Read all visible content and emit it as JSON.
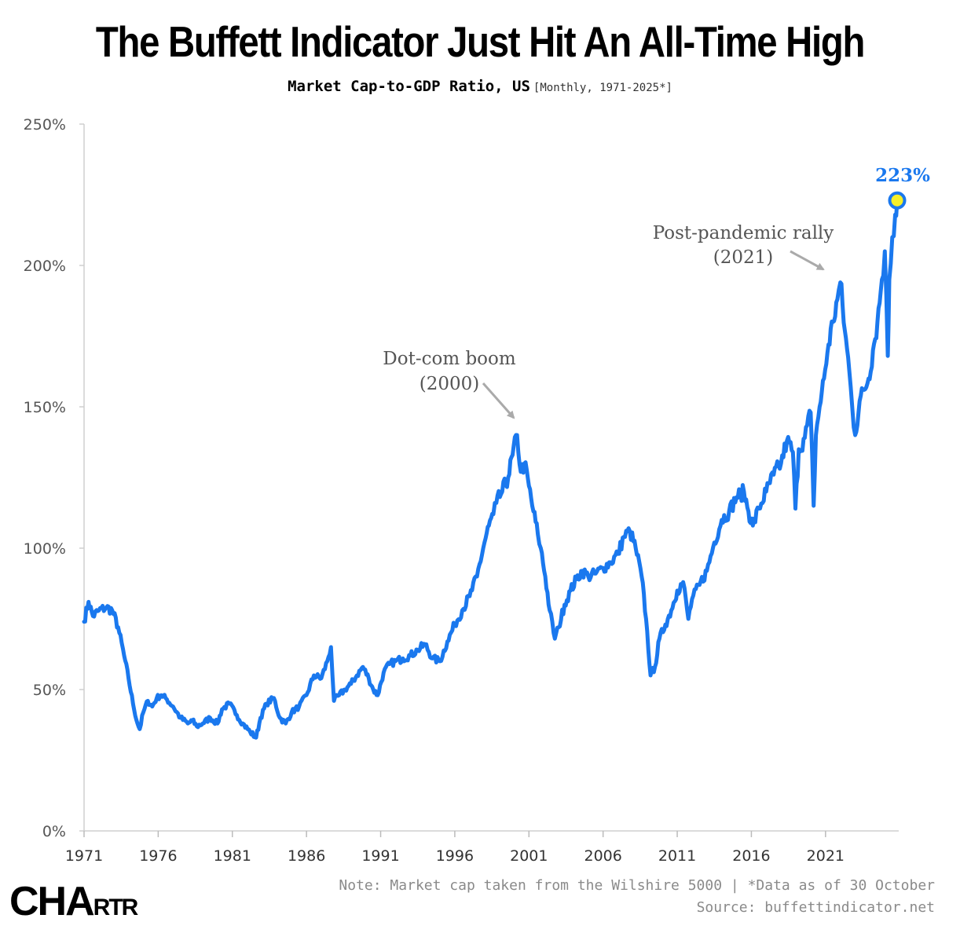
{
  "title": "The Buffett Indicator Just Hit An All-Time High",
  "subtitle": "Market Cap-to-GDP Ratio, US",
  "subtitle_range": "[Monthly, 1971-2025*]",
  "note_line1": "Note: Market cap taken from the Wilshire 5000 | *Data as of 30 October",
  "note_line2": "Source: buffettindicator.net",
  "logo": {
    "big": "CHA",
    "small": "RTR"
  },
  "colors": {
    "line": "#1a78ee",
    "marker_fill": "#f5ef2a",
    "annotation": "#555555",
    "arrow": "#aaaaaa"
  },
  "chart_data": {
    "type": "line",
    "ylim": [
      0,
      250
    ],
    "xlim": [
      1971,
      2025.83
    ],
    "y_ticks": [
      "0%",
      "50%",
      "100%",
      "150%",
      "200%",
      "250%"
    ],
    "x_ticks": [
      "1971",
      "1976",
      "1981",
      "1986",
      "1991",
      "1996",
      "2001",
      "2006",
      "2011",
      "2016",
      "2021"
    ],
    "grid": false,
    "series": [
      {
        "x": [
          1971.0,
          1971.3,
          1971.6,
          1972.0,
          1972.5,
          1972.9,
          1973.3,
          1973.7,
          1974.0,
          1974.3,
          1974.6,
          1974.75,
          1975.0,
          1975.3,
          1975.6,
          1975.9,
          1976.2,
          1976.5,
          1977.0,
          1977.5,
          1978.0,
          1978.3,
          1978.6,
          1979.0,
          1979.5,
          1980.0,
          1980.3,
          1980.8,
          1981.3,
          1981.7,
          1982.2,
          1982.6,
          1982.9,
          1983.3,
          1983.8,
          1984.2,
          1984.6,
          1985.0,
          1985.5,
          1986.0,
          1986.5,
          1987.0,
          1987.4,
          1987.65,
          1987.85,
          1988.2,
          1988.6,
          1989.0,
          1989.4,
          1989.8,
          1990.2,
          1990.5,
          1990.8,
          1991.2,
          1991.6,
          1992.0,
          1992.5,
          1993.0,
          1993.5,
          1994.0,
          1994.5,
          1995.0,
          1995.5,
          1996.0,
          1996.5,
          1997.0,
          1997.5,
          1998.0,
          1998.3,
          1998.6,
          1998.8,
          1999.2,
          1999.6,
          1999.9,
          2000.2,
          2000.45,
          2000.7,
          2001.0,
          2001.3,
          2001.6,
          2001.8,
          2002.1,
          2002.4,
          2002.75,
          2003.0,
          2003.4,
          2003.8,
          2004.2,
          2004.6,
          2005.0,
          2005.5,
          2006.0,
          2006.5,
          2007.0,
          2007.4,
          2007.8,
          2008.2,
          2008.6,
          2008.9,
          2009.2,
          2009.5,
          2009.8,
          2010.2,
          2010.6,
          2011.0,
          2011.4,
          2011.75,
          2012.0,
          2012.5,
          2013.0,
          2013.5,
          2014.0,
          2014.5,
          2015.0,
          2015.5,
          2015.8,
          2016.1,
          2016.5,
          2017.0,
          2017.5,
          2018.0,
          2018.4,
          2018.8,
          2018.97,
          2019.2,
          2019.6,
          2020.0,
          2020.2,
          2020.35,
          2020.6,
          2020.9,
          2021.2,
          2021.5,
          2021.8,
          2022.0,
          2022.3,
          2022.6,
          2022.8,
          2023.0,
          2023.3,
          2023.6,
          2023.9,
          2024.2,
          2024.5,
          2024.8,
          2025.0,
          2025.2,
          2025.3,
          2025.5,
          2025.7,
          2025.83
        ],
        "y": [
          74,
          81,
          76,
          78,
          79,
          78,
          72,
          62,
          54,
          45,
          38,
          36,
          42,
          46,
          44,
          47,
          48,
          47,
          44,
          40,
          38,
          39,
          37,
          38,
          40,
          38,
          43,
          45,
          41,
          38,
          35,
          33,
          40,
          45,
          47,
          40,
          38,
          42,
          44,
          48,
          55,
          54,
          60,
          65,
          46,
          48,
          50,
          52,
          55,
          58,
          54,
          50,
          48,
          56,
          59,
          60,
          61,
          62,
          64,
          66,
          61,
          60,
          67,
          73,
          78,
          83,
          90,
          102,
          108,
          112,
          116,
          120,
          125,
          133,
          140,
          127,
          130,
          122,
          113,
          105,
          100,
          90,
          78,
          68,
          72,
          80,
          85,
          89,
          92,
          90,
          91,
          93,
          95,
          98,
          104,
          106,
          100,
          90,
          75,
          55,
          58,
          68,
          73,
          78,
          85,
          88,
          75,
          82,
          87,
          92,
          102,
          110,
          113,
          118,
          120,
          113,
          108,
          114,
          120,
          126,
          130,
          138,
          134,
          114,
          135,
          139,
          148,
          115,
          140,
          150,
          160,
          172,
          180,
          188,
          194,
          177,
          163,
          150,
          140,
          152,
          156,
          160,
          170,
          180,
          195,
          205,
          168,
          195,
          210,
          218,
          223
        ]
      }
    ],
    "end_label": "223%",
    "annotations": [
      {
        "line1": "Dot-com boom",
        "line2": "(2000)",
        "x": 2000.2,
        "y": 145
      },
      {
        "line1": "Post-pandemic rally",
        "line2": "(2021)",
        "x": 2021.0,
        "y": 199
      }
    ]
  }
}
